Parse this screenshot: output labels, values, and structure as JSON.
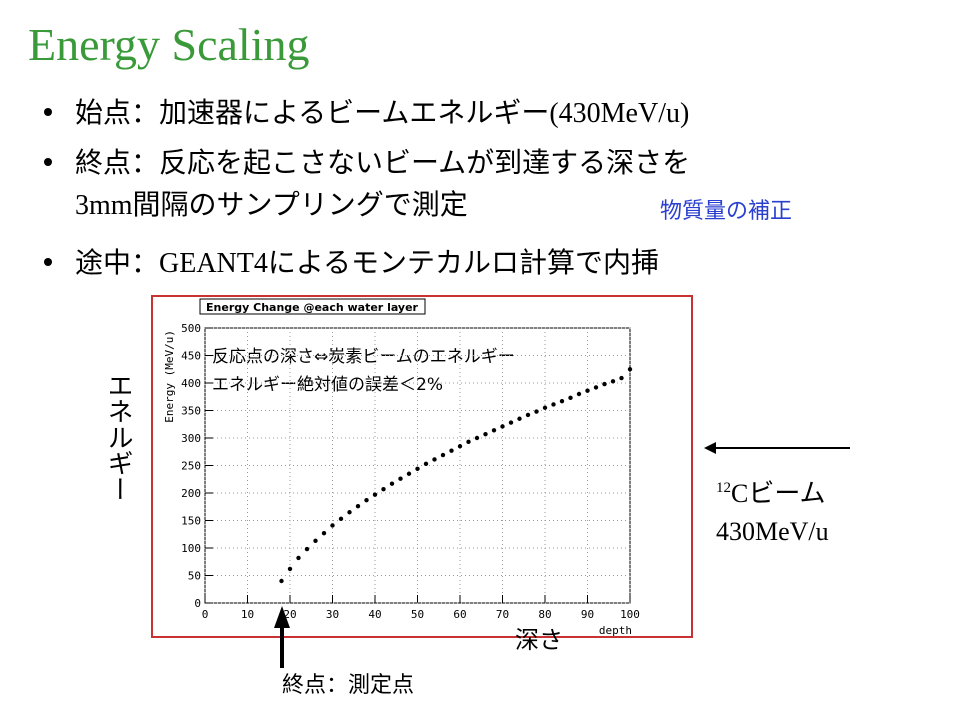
{
  "title": "Energy Scaling",
  "bullets": [
    {
      "lines": [
        "始点：加速器によるビームエネルギー(430MeV/u)"
      ]
    },
    {
      "lines": [
        "終点：反応を起こさないビームが到達する深さを",
        "3mm間隔のサンプリングで測定"
      ]
    },
    {
      "lines": [
        "途中：GEANT4によるモンテカルロ計算で内挿"
      ]
    }
  ],
  "note": "物質量の補正",
  "y_annotation": "エネルギー",
  "beam": {
    "mass": "12",
    "label": "Cビーム",
    "energy": "430MeV/u"
  },
  "depth_annotation": "深さ",
  "endpoint_annotation": "終点：測定点",
  "chart_data": {
    "type": "scatter",
    "title": "Energy Change @each water layer",
    "xlabel": "depth",
    "ylabel": "Energy (MeV/u)",
    "annotations": [
      "反応点の深さ⇔炭素ビームのエネルギー",
      "エネルギー絶対値の誤差＜2%"
    ],
    "x": [
      18,
      20,
      22,
      24,
      26,
      28,
      30,
      32,
      34,
      36,
      38,
      40,
      42,
      44,
      46,
      48,
      50,
      52,
      54,
      56,
      58,
      60,
      62,
      64,
      66,
      68,
      70,
      72,
      74,
      76,
      78,
      80,
      82,
      84,
      86,
      88,
      90,
      92,
      94,
      96,
      98,
      100
    ],
    "series": [
      {
        "color": "#000000",
        "values": [
          40,
          62,
          82,
          98,
          113,
          127,
          141,
          153,
          165,
          176,
          187,
          197,
          207,
          217,
          226,
          235,
          244,
          253,
          261,
          269,
          277,
          285,
          293,
          300,
          307,
          314,
          321,
          328,
          335,
          342,
          348,
          355,
          361,
          367,
          373,
          380,
          386,
          392,
          398,
          403,
          409,
          425
        ]
      }
    ],
    "xlim": [
      0,
      100
    ],
    "xticks": [
      0,
      10,
      20,
      30,
      40,
      50,
      60,
      70,
      80,
      90,
      100
    ],
    "ylim": [
      0,
      500
    ],
    "yticks": [
      0,
      50,
      100,
      150,
      200,
      250,
      300,
      350,
      400,
      450,
      500
    ],
    "grid": true
  }
}
